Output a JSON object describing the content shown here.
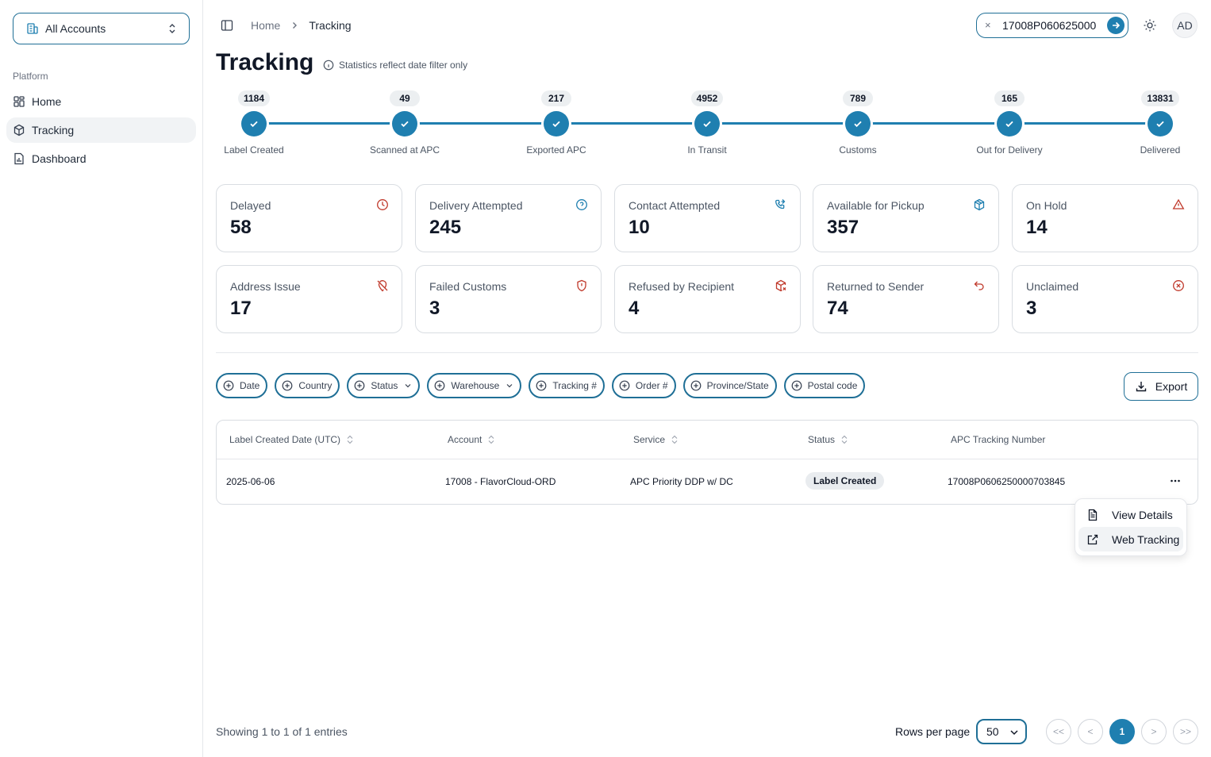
{
  "sidebar": {
    "account_switch": "All Accounts",
    "section_label": "Platform",
    "items": [
      {
        "label": "Home",
        "icon": "grid-icon"
      },
      {
        "label": "Tracking",
        "icon": "box-icon"
      },
      {
        "label": "Dashboard",
        "icon": "report-icon"
      }
    ]
  },
  "header": {
    "breadcrumb_home": "Home",
    "breadcrumb_current": "Tracking",
    "search_value": "17008P060625000",
    "avatar": "AD"
  },
  "page": {
    "title": "Tracking",
    "info": "Statistics reflect date filter only"
  },
  "stepper": [
    {
      "count": "1184",
      "label": "Label Created"
    },
    {
      "count": "49",
      "label": "Scanned at APC"
    },
    {
      "count": "217",
      "label": "Exported APC"
    },
    {
      "count": "4952",
      "label": "In Transit"
    },
    {
      "count": "789",
      "label": "Customs"
    },
    {
      "count": "165",
      "label": "Out for Delivery"
    },
    {
      "count": "13831",
      "label": "Delivered"
    }
  ],
  "cards": [
    {
      "label": "Delayed",
      "value": "58",
      "icon": "clock-icon",
      "color": "#c0392b"
    },
    {
      "label": "Delivery Attempted",
      "value": "245",
      "icon": "help-circle-icon",
      "color": "#1f7fb0"
    },
    {
      "label": "Contact Attempted",
      "value": "10",
      "icon": "phone-forward-icon",
      "color": "#1f7fb0"
    },
    {
      "label": "Available for Pickup",
      "value": "357",
      "icon": "package-icon",
      "color": "#1f7fb0"
    },
    {
      "label": "On Hold",
      "value": "14",
      "icon": "warning-icon",
      "color": "#c0392b"
    },
    {
      "label": "Address Issue",
      "value": "17",
      "icon": "map-pin-off-icon",
      "color": "#c0392b"
    },
    {
      "label": "Failed Customs",
      "value": "3",
      "icon": "shield-alert-icon",
      "color": "#c0392b"
    },
    {
      "label": "Refused by Recipient",
      "value": "4",
      "icon": "package-x-icon",
      "color": "#c0392b"
    },
    {
      "label": "Returned to Sender",
      "value": "74",
      "icon": "undo-icon",
      "color": "#c0392b"
    },
    {
      "label": "Unclaimed",
      "value": "3",
      "icon": "x-circle-icon",
      "color": "#c0392b"
    }
  ],
  "filters": [
    {
      "label": "Date",
      "dropdown": false
    },
    {
      "label": "Country",
      "dropdown": false
    },
    {
      "label": "Status",
      "dropdown": true
    },
    {
      "label": "Warehouse",
      "dropdown": true
    },
    {
      "label": "Tracking #",
      "dropdown": false
    },
    {
      "label": "Order #",
      "dropdown": false
    },
    {
      "label": "Province/State",
      "dropdown": false
    },
    {
      "label": "Postal code",
      "dropdown": false
    }
  ],
  "export_label": "Export",
  "table": {
    "columns": [
      "Label Created Date (UTC)",
      "Account",
      "Service",
      "Status",
      "APC Tracking Number"
    ],
    "rows": [
      {
        "date": "2025-06-06",
        "account": "17008 - FlavorCloud-ORD",
        "service": "APC Priority DDP w/ DC",
        "status": "Label Created",
        "tracking": "17008P0606250000703845"
      }
    ]
  },
  "row_menu": {
    "items": [
      "View Details",
      "Web Tracking"
    ]
  },
  "footer": {
    "showing": "Showing 1 to 1 of 1 entries",
    "rows_per_page_label": "Rows per page",
    "rows_per_page_value": "50",
    "pager": [
      "<<",
      "<",
      "1",
      ">",
      ">>"
    ]
  },
  "colors": {
    "accent": "#1f7fb0",
    "border_accent": "#1f6f96",
    "danger": "#c0392b"
  }
}
